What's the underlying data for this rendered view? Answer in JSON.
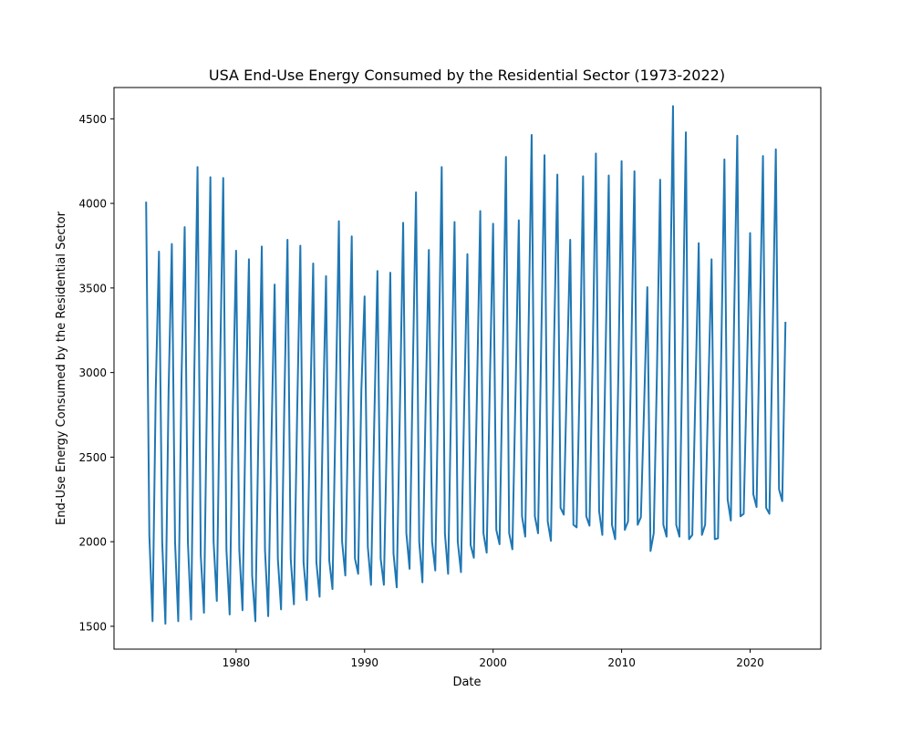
{
  "chart_data": {
    "type": "line",
    "title": "USA End-Use Energy Consumed by the Residential Sector (1973-2022)",
    "xlabel": "Date",
    "ylabel": "End-Use Energy Consumed by the Residential Sector",
    "xlim": [
      1970.5,
      2025.5
    ],
    "ylim": [
      1365,
      4685
    ],
    "x_ticks": [
      1980,
      1990,
      2000,
      2010,
      2020
    ],
    "y_ticks": [
      1500,
      2000,
      2500,
      3000,
      3500,
      4000,
      4500
    ],
    "grid": false,
    "legend": "none",
    "line_color": "#1f77b4",
    "series": [
      {
        "x": [
          1973.0,
          1973.25,
          1973.5,
          1973.75,
          1974.0,
          1974.25,
          1974.5,
          1974.75,
          1975.0,
          1975.25,
          1975.5,
          1975.75,
          1976.0,
          1976.25,
          1976.5,
          1976.75,
          1977.0,
          1977.25,
          1977.5,
          1977.75,
          1978.0,
          1978.25,
          1978.5,
          1978.75,
          1979.0,
          1979.25,
          1979.5,
          1979.75,
          1980.0,
          1980.25,
          1980.5,
          1980.75,
          1981.0,
          1981.25,
          1981.5,
          1981.75,
          1982.0,
          1982.25,
          1982.5,
          1982.75,
          1983.0,
          1983.25,
          1983.5,
          1983.75,
          1984.0,
          1984.25,
          1984.5,
          1984.75,
          1985.0,
          1985.25,
          1985.5,
          1985.75,
          1986.0,
          1986.25,
          1986.5,
          1986.75,
          1987.0,
          1987.25,
          1987.5,
          1987.75,
          1988.0,
          1988.25,
          1988.5,
          1988.75,
          1989.0,
          1989.25,
          1989.5,
          1989.75,
          1990.0,
          1990.25,
          1990.5,
          1990.75,
          1991.0,
          1991.25,
          1991.5,
          1991.75,
          1992.0,
          1992.25,
          1992.5,
          1992.75,
          1993.0,
          1993.25,
          1993.5,
          1993.75,
          1994.0,
          1994.25,
          1994.5,
          1994.75,
          1995.0,
          1995.25,
          1995.5,
          1995.75,
          1996.0,
          1996.25,
          1996.5,
          1996.75,
          1997.0,
          1997.25,
          1997.5,
          1997.75,
          1998.0,
          1998.25,
          1998.5,
          1998.75,
          1999.0,
          1999.25,
          1999.5,
          1999.75,
          2000.0,
          2000.25,
          2000.5,
          2000.75,
          2001.0,
          2001.25,
          2001.5,
          2001.75,
          2002.0,
          2002.25,
          2002.5,
          2002.75,
          2003.0,
          2003.25,
          2003.5,
          2003.75,
          2004.0,
          2004.25,
          2004.5,
          2004.75,
          2005.0,
          2005.25,
          2005.5,
          2005.75,
          2006.0,
          2006.25,
          2006.5,
          2006.75,
          2007.0,
          2007.25,
          2007.5,
          2007.75,
          2008.0,
          2008.25,
          2008.5,
          2008.75,
          2009.0,
          2009.25,
          2009.5,
          2009.75,
          2010.0,
          2010.25,
          2010.5,
          2010.75,
          2011.0,
          2011.25,
          2011.5,
          2011.75,
          2012.0,
          2012.25,
          2012.5,
          2012.75,
          2013.0,
          2013.25,
          2013.5,
          2013.75,
          2014.0,
          2014.25,
          2014.5,
          2014.75,
          2015.0,
          2015.25,
          2015.5,
          2015.75,
          2016.0,
          2016.25,
          2016.5,
          2016.75,
          2017.0,
          2017.25,
          2017.5,
          2017.75,
          2018.0,
          2018.25,
          2018.5,
          2018.75,
          2019.0,
          2019.25,
          2019.5,
          2019.75,
          2020.0,
          2020.25,
          2020.5,
          2020.75,
          2021.0,
          2021.25,
          2021.5,
          2021.75,
          2022.0,
          2022.25,
          2022.5,
          2022.75
        ],
        "y": [
          4010,
          2040,
          1530,
          2900,
          3715,
          2000,
          1515,
          2900,
          3760,
          2000,
          1530,
          2950,
          3860,
          2000,
          1540,
          3000,
          4215,
          1920,
          1580,
          2950,
          4155,
          2000,
          1650,
          3000,
          4150,
          1950,
          1570,
          2800,
          3720,
          1950,
          1595,
          2780,
          3670,
          1800,
          1530,
          2700,
          3745,
          1950,
          1560,
          2600,
          3520,
          1900,
          1600,
          2800,
          3785,
          1900,
          1630,
          2750,
          3750,
          1880,
          1655,
          2700,
          3645,
          1880,
          1675,
          2700,
          3570,
          1890,
          1720,
          2800,
          3895,
          2000,
          1800,
          2850,
          3805,
          1900,
          1810,
          2900,
          3450,
          1970,
          1745,
          2700,
          3600,
          1900,
          1745,
          2700,
          3590,
          1930,
          1730,
          2800,
          3885,
          2050,
          1840,
          3000,
          4065,
          2000,
          1760,
          2800,
          3725,
          2000,
          1830,
          3000,
          4215,
          2050,
          1810,
          2900,
          3890,
          2000,
          1820,
          2800,
          3700,
          1980,
          1905,
          2900,
          3955,
          2050,
          1935,
          2950,
          3880,
          2070,
          1985,
          3050,
          4275,
          2050,
          1955,
          2900,
          3900,
          2150,
          2030,
          3200,
          4405,
          2150,
          2050,
          3200,
          4285,
          2120,
          2005,
          3200,
          4170,
          2200,
          2160,
          3000,
          3785,
          2100,
          2085,
          3000,
          4160,
          2150,
          2095,
          3100,
          4295,
          2180,
          2040,
          3100,
          4165,
          2100,
          2015,
          3000,
          4250,
          2070,
          2120,
          3100,
          4190,
          2100,
          2145,
          2800,
          3505,
          1945,
          2050,
          3000,
          4140,
          2100,
          2030,
          3300,
          4575,
          2100,
          2030,
          3200,
          4420,
          2015,
          2040,
          2900,
          3765,
          2040,
          2100,
          2900,
          3670,
          2015,
          2020,
          3100,
          4260,
          2250,
          2125,
          3300,
          4400,
          2150,
          2165,
          3000,
          3825,
          2280,
          2205,
          3300,
          4280,
          2200,
          2165,
          3200,
          4320,
          2310,
          2240,
          3300
        ]
      }
    ]
  }
}
